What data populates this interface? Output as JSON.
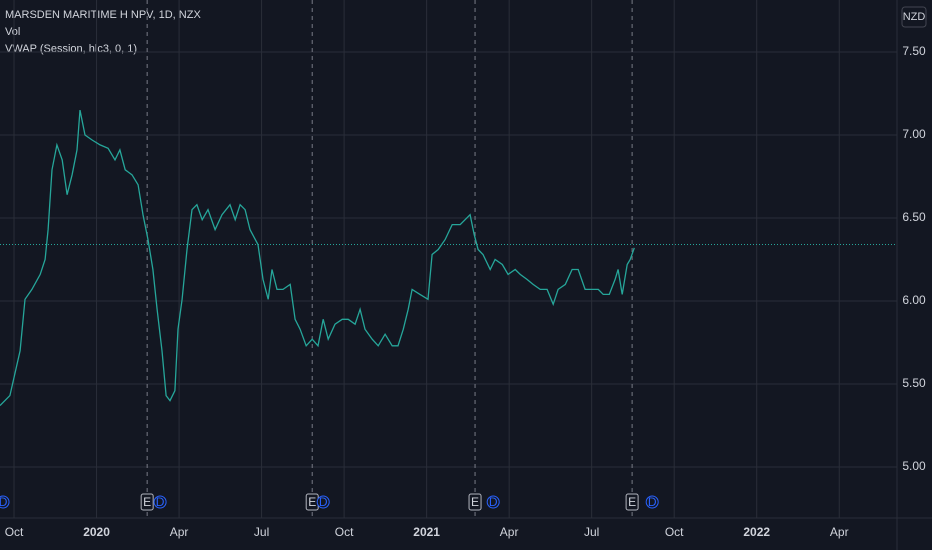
{
  "chart_data": {
    "type": "line",
    "title": "MARSDEN MARITIME H NPV, 1D, NZX",
    "indicators": [
      "Vol",
      "VWAP (Session, hlc3, 0, 1)"
    ],
    "currency": "NZD",
    "x": [
      -0.51,
      -0.15,
      0.22,
      0.4,
      0.65,
      0.95,
      1.13,
      1.24,
      1.38,
      1.56,
      1.75,
      1.93,
      2.11,
      2.29,
      2.4,
      2.58,
      2.84,
      3.13,
      3.42,
      3.67,
      3.85,
      4.04,
      4.29,
      4.51,
      4.69,
      4.87,
      5.05,
      5.2,
      5.38,
      5.53,
      5.67,
      5.85,
      5.96,
      6.11,
      6.29,
      6.47,
      6.65,
      6.84,
      7.05,
      7.31,
      7.56,
      7.85,
      8.04,
      8.22,
      8.4,
      8.58,
      8.87,
      9.05,
      9.24,
      9.38,
      9.56,
      9.78,
      10.04,
      10.22,
      10.4,
      10.62,
      10.84,
      11.05,
      11.24,
      11.42,
      11.67,
      11.93,
      12.15,
      12.4,
      12.58,
      12.76,
      13.02,
      13.24,
      13.49,
      13.75,
      13.96,
      14.15,
      14.33,
      14.47,
      14.76,
      15.05,
      15.2,
      15.42,
      15.67,
      15.93,
      16.22,
      16.4,
      16.58,
      16.73,
      16.87,
      17.05,
      17.31,
      17.49,
      17.75,
      17.96,
      18.22,
      18.4,
      18.65,
      18.87,
      19.13,
      19.38,
      19.6,
      19.78,
      20.04,
      20.29,
      20.51,
      20.76,
      21.02,
      21.24,
      21.42,
      21.64,
      21.85,
      21.96,
      22.11,
      22.29,
      22.4,
      22.55
    ],
    "series": [
      {
        "name": "Close",
        "color": "#26a69a",
        "values": [
          5.37,
          5.43,
          5.7,
          6.01,
          6.07,
          6.16,
          6.25,
          6.43,
          6.79,
          6.94,
          6.85,
          6.64,
          6.76,
          6.91,
          7.15,
          7.0,
          6.97,
          6.94,
          6.92,
          6.85,
          6.91,
          6.79,
          6.76,
          6.7,
          6.52,
          6.37,
          6.19,
          5.95,
          5.7,
          5.43,
          5.4,
          5.46,
          5.83,
          6.01,
          6.31,
          6.55,
          6.58,
          6.49,
          6.55,
          6.43,
          6.52,
          6.58,
          6.49,
          6.58,
          6.55,
          6.43,
          6.34,
          6.13,
          6.01,
          6.19,
          6.07,
          6.07,
          6.1,
          5.89,
          5.83,
          5.73,
          5.77,
          5.73,
          5.89,
          5.77,
          5.86,
          5.89,
          5.89,
          5.86,
          5.95,
          5.83,
          5.77,
          5.73,
          5.8,
          5.73,
          5.73,
          5.83,
          5.95,
          6.07,
          6.04,
          6.01,
          6.28,
          6.31,
          6.37,
          6.46,
          6.46,
          6.49,
          6.52,
          6.4,
          6.31,
          6.28,
          6.19,
          6.25,
          6.22,
          6.16,
          6.19,
          6.16,
          6.13,
          6.1,
          6.07,
          6.07,
          5.98,
          6.07,
          6.1,
          6.19,
          6.19,
          6.07,
          6.07,
          6.07,
          6.04,
          6.04,
          6.13,
          6.19,
          6.04,
          6.22,
          6.25,
          6.32
        ]
      }
    ],
    "last_price": 6.34,
    "earnings": [
      {
        "x": 4.84,
        "label": "E"
      },
      {
        "x": 10.84,
        "label": "E"
      },
      {
        "x": 16.76,
        "label": "E"
      },
      {
        "x": 22.47,
        "label": "E"
      }
    ],
    "dividends": [
      {
        "x": -0.4,
        "label": "D"
      },
      {
        "x": 5.31,
        "label": "D"
      },
      {
        "x": 11.24,
        "label": "D"
      },
      {
        "x": 17.42,
        "label": "D"
      },
      {
        "x": 23.2,
        "label": "D"
      }
    ],
    "xlim": [
      -0.51,
      32.1
    ],
    "xticks": [
      {
        "value": 0,
        "label": "Oct"
      },
      {
        "value": 3,
        "label": "2020"
      },
      {
        "value": 6,
        "label": "Apr"
      },
      {
        "value": 9,
        "label": "Jul"
      },
      {
        "value": 12,
        "label": "Oct"
      },
      {
        "value": 15,
        "label": "2021"
      },
      {
        "value": 18,
        "label": "Apr"
      },
      {
        "value": 21,
        "label": "Jul"
      },
      {
        "value": 24,
        "label": "Oct"
      },
      {
        "value": 27,
        "label": "2022"
      },
      {
        "value": 30,
        "label": "Apr"
      }
    ],
    "ylim": [
      4.693,
      7.813
    ],
    "yticks": [
      {
        "value": 5,
        "label": "5.00"
      },
      {
        "value": 5.5,
        "label": "5.50"
      },
      {
        "value": 6,
        "label": "6.00"
      },
      {
        "value": 6.5,
        "label": "6.50"
      },
      {
        "value": 7,
        "label": "7.00"
      },
      {
        "value": 7.5,
        "label": "7.50"
      }
    ],
    "grid": true
  }
}
